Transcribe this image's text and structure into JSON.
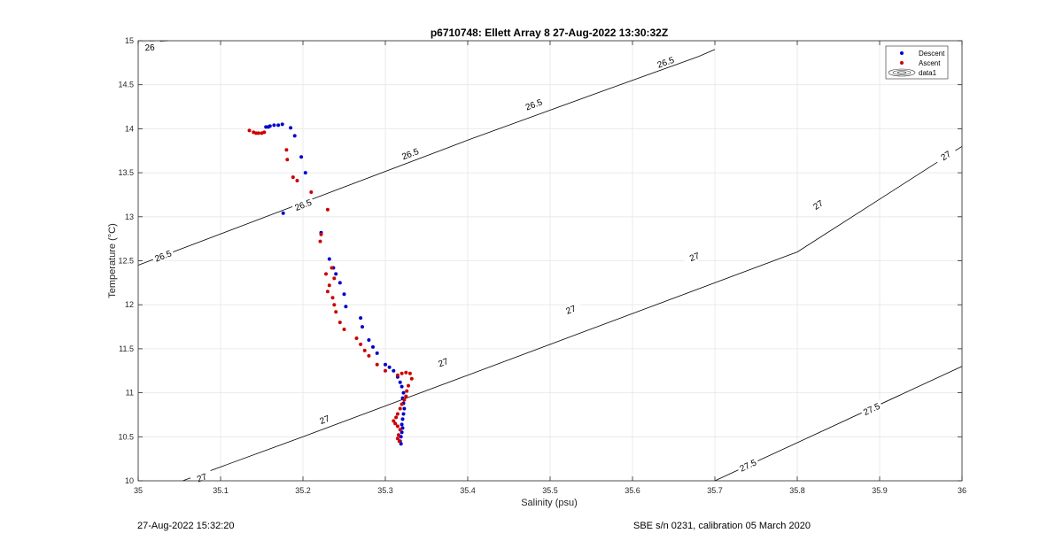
{
  "chart_data": {
    "type": "scatter",
    "title": "p6710748: Ellett Array 8 27-Aug-2022 13:30:32Z",
    "xlabel": "Salinity (psu)",
    "ylabel": "Temperature (°C)",
    "xlim": [
      35,
      36
    ],
    "ylim": [
      10,
      15
    ],
    "xticks": [
      35,
      35.1,
      35.2,
      35.3,
      35.4,
      35.5,
      35.6,
      35.7,
      35.8,
      35.9,
      36
    ],
    "xtick_labels": [
      "35",
      "35.1",
      "35.2",
      "35.3",
      "35.4",
      "35.5",
      "35.6",
      "35.7",
      "35.8",
      "35.9",
      "36"
    ],
    "yticks": [
      10,
      10.5,
      11,
      11.5,
      12,
      12.5,
      13,
      13.5,
      14,
      14.5,
      15
    ],
    "ytick_labels": [
      "10",
      "10.5",
      "11",
      "11.5",
      "12",
      "12.5",
      "13",
      "13.5",
      "14",
      "14.5",
      "15"
    ],
    "grid": true,
    "legend_position": "top-right",
    "series": [
      {
        "name": "Descent",
        "color": "#0000cc",
        "x": [
          35.175,
          35.17,
          35.165,
          35.16,
          35.158,
          35.155,
          35.185,
          35.19,
          35.198,
          35.203,
          35.176,
          35.222,
          35.232,
          35.237,
          35.24,
          35.245,
          35.25,
          35.252,
          35.27,
          35.272,
          35.28,
          35.285,
          35.29,
          35.3,
          35.305,
          35.31,
          35.315,
          35.318,
          35.32,
          35.322,
          35.321,
          35.322,
          35.323,
          35.322,
          35.321,
          35.32,
          35.321,
          35.32,
          35.319,
          35.318,
          35.319
        ],
        "y": [
          14.05,
          14.04,
          14.04,
          14.03,
          14.02,
          14.02,
          14.01,
          13.92,
          13.68,
          13.5,
          13.04,
          12.82,
          12.52,
          12.42,
          12.35,
          12.25,
          12.12,
          11.98,
          11.85,
          11.75,
          11.6,
          11.52,
          11.45,
          11.32,
          11.29,
          11.25,
          11.18,
          11.12,
          11.07,
          11.0,
          10.94,
          10.88,
          10.82,
          10.76,
          10.7,
          10.64,
          10.6,
          10.55,
          10.5,
          10.45,
          10.42
        ]
      },
      {
        "name": "Ascent",
        "color": "#cc0000",
        "x": [
          35.135,
          35.14,
          35.143,
          35.146,
          35.15,
          35.153,
          35.18,
          35.181,
          35.188,
          35.193,
          35.21,
          35.23,
          35.222,
          35.221,
          35.235,
          35.238,
          35.228,
          35.232,
          35.23,
          35.236,
          35.238,
          35.24,
          35.245,
          35.25,
          35.265,
          35.27,
          35.275,
          35.28,
          35.29,
          35.3,
          35.315,
          35.32,
          35.325,
          35.33,
          35.332,
          35.328,
          35.326,
          35.325,
          35.323,
          35.32,
          35.318,
          35.315,
          35.313,
          35.31,
          35.312,
          35.315,
          35.318,
          35.316,
          35.315,
          35.317
        ],
        "y": [
          13.98,
          13.96,
          13.95,
          13.95,
          13.95,
          13.96,
          13.76,
          13.65,
          13.45,
          13.41,
          13.28,
          13.08,
          12.8,
          12.72,
          12.42,
          12.3,
          12.35,
          12.22,
          12.15,
          12.08,
          12.0,
          11.92,
          11.8,
          11.72,
          11.62,
          11.55,
          11.48,
          11.42,
          11.32,
          11.25,
          11.2,
          11.22,
          11.23,
          11.22,
          11.16,
          11.08,
          11.02,
          10.96,
          10.92,
          10.87,
          10.82,
          10.76,
          10.72,
          10.68,
          10.65,
          10.62,
          10.58,
          10.52,
          10.48,
          10.45
        ]
      }
    ],
    "contours": [
      {
        "level": "26",
        "points": [
          [
            35.0,
            14.98
          ],
          [
            35.036,
            15.0
          ]
        ],
        "labels": [
          [
            35.014,
            14.93
          ]
        ]
      },
      {
        "level": "26.5",
        "points": [
          [
            35.0,
            12.45
          ],
          [
            35.2,
            13.16
          ],
          [
            35.4,
            13.87
          ],
          [
            35.57,
            14.45
          ],
          [
            35.68,
            14.82
          ],
          [
            35.7,
            14.9
          ]
        ],
        "labels": [
          [
            35.03,
            12.56
          ],
          [
            35.2,
            13.14
          ],
          [
            35.33,
            13.72
          ],
          [
            35.48,
            14.28
          ],
          [
            35.64,
            14.76
          ]
        ]
      },
      {
        "level": "27",
        "points": [
          [
            35.054,
            10.0
          ],
          [
            35.2,
            10.5
          ],
          [
            35.4,
            11.2
          ],
          [
            35.6,
            11.9
          ],
          [
            35.8,
            12.6
          ],
          [
            36.0,
            13.8
          ]
        ],
        "labels": [
          [
            35.077,
            10.04
          ],
          [
            35.226,
            10.7
          ],
          [
            35.37,
            11.35
          ],
          [
            35.525,
            11.95
          ],
          [
            35.675,
            12.55
          ],
          [
            35.825,
            13.14
          ],
          [
            35.98,
            13.7
          ]
        ]
      },
      {
        "level": "27.5",
        "points": [
          [
            35.7,
            10.0
          ],
          [
            36.0,
            11.3
          ]
        ],
        "labels": [
          [
            35.74,
            10.18
          ],
          [
            35.89,
            10.82
          ]
        ]
      }
    ]
  },
  "legend": {
    "entries": [
      "Descent",
      "Ascent",
      "data1"
    ]
  },
  "footer": {
    "timestamp": "27-Aug-2022 15:32:20",
    "calibration": "SBE s/n 0231, calibration 05 March 2020"
  }
}
